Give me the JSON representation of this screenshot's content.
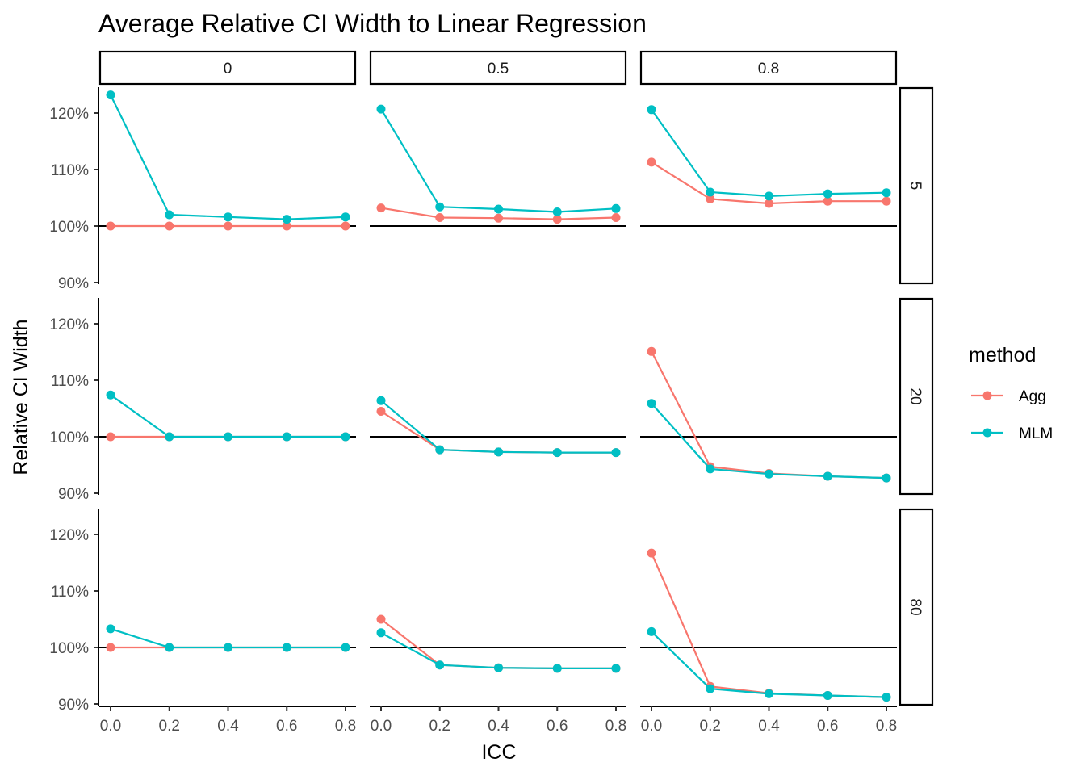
{
  "chart_data": {
    "type": "line",
    "title": "Average Relative CI Width to Linear Regression",
    "xlabel": "ICC",
    "ylabel": "Relative CI Width",
    "x": [
      0.0,
      0.2,
      0.4,
      0.6,
      0.8
    ],
    "x_tick_labels": [
      "0.0",
      "0.2",
      "0.4",
      "0.6",
      "0.8"
    ],
    "ylim": [
      90,
      124
    ],
    "y_ticks": [
      90,
      100,
      110,
      120
    ],
    "y_tick_labels": [
      "90%",
      "100%",
      "110%",
      "120%"
    ],
    "reference_line": 100,
    "col_facet_labels": [
      "0",
      "0.5",
      "0.8"
    ],
    "row_facet_labels": [
      "5",
      "20",
      "80"
    ],
    "legend": {
      "title": "method",
      "placement": "right",
      "items": [
        {
          "name": "Agg",
          "color": "#F8766D"
        },
        {
          "name": "MLM",
          "color": "#00BFC4"
        }
      ]
    },
    "series": [
      {
        "name": "Agg",
        "color": "#F8766D",
        "panels": [
          [
            [
              100.0,
              100.0,
              100.0,
              100.0,
              100.0
            ],
            [
              103.2,
              101.5,
              101.4,
              101.2,
              101.5
            ],
            [
              111.3,
              104.8,
              104.0,
              104.4,
              104.4
            ]
          ],
          [
            [
              100.0,
              100.0,
              100.0,
              100.0,
              100.0
            ],
            [
              104.5,
              97.7,
              97.3,
              97.2,
              97.2
            ],
            [
              115.1,
              94.7,
              93.5,
              93.0,
              92.7
            ]
          ],
          [
            [
              100.0,
              100.0,
              100.0,
              100.0,
              100.0
            ],
            [
              105.0,
              96.9,
              96.4,
              96.3,
              96.3
            ],
            [
              116.7,
              93.1,
              91.9,
              91.5,
              91.2
            ]
          ]
        ]
      },
      {
        "name": "MLM",
        "color": "#00BFC4",
        "panels": [
          [
            [
              123.2,
              102.0,
              101.6,
              101.2,
              101.6
            ],
            [
              120.7,
              103.4,
              103.0,
              102.5,
              103.1
            ],
            [
              120.6,
              106.0,
              105.3,
              105.7,
              105.9
            ]
          ],
          [
            [
              107.4,
              100.0,
              100.0,
              100.0,
              100.0
            ],
            [
              106.4,
              97.7,
              97.3,
              97.2,
              97.2
            ],
            [
              105.9,
              94.3,
              93.4,
              93.0,
              92.7
            ]
          ],
          [
            [
              103.3,
              100.0,
              100.0,
              100.0,
              100.0
            ],
            [
              102.6,
              96.9,
              96.4,
              96.3,
              96.3
            ],
            [
              102.8,
              92.7,
              91.8,
              91.5,
              91.2
            ]
          ]
        ]
      }
    ]
  }
}
